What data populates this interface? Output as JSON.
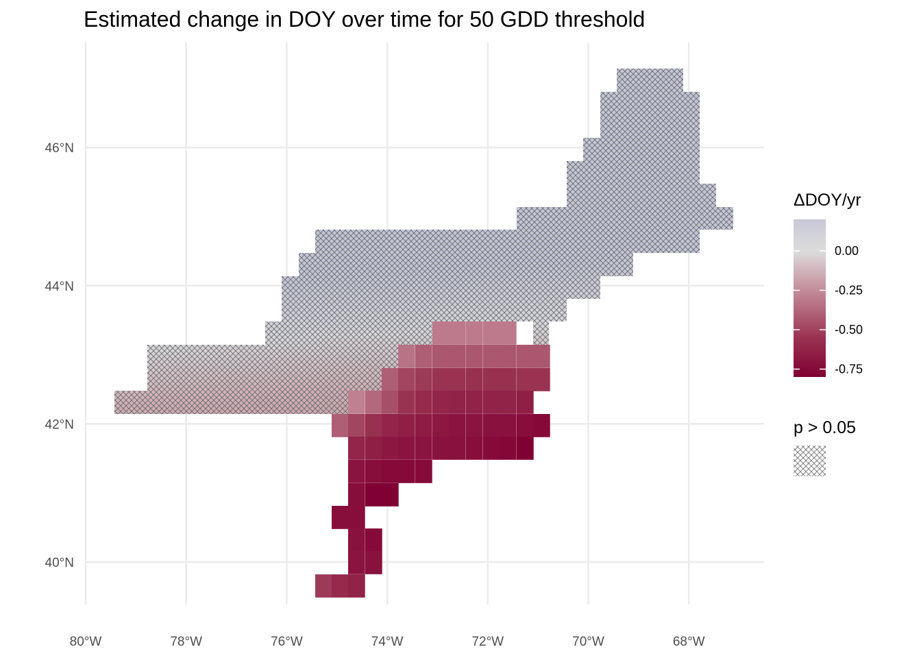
{
  "title": "Estimated change in DOY over time for 50 GDD threshold",
  "chart_data": {
    "type": "heatmap",
    "title": "Estimated change in DOY over time for 50 GDD threshold",
    "xlabel": "",
    "ylabel": "",
    "x_ticks": [
      "80°W",
      "78°W",
      "76°W",
      "74°W",
      "72°W",
      "70°W",
      "68°W"
    ],
    "y_ticks": [
      "40°N",
      "42°N",
      "44°N",
      "46°N"
    ],
    "grid": true,
    "legend_position": "right",
    "color_legend": {
      "title": "ΔDOY/yr",
      "ticks": [
        "0.00",
        "-0.25",
        "-0.50",
        "-0.75"
      ],
      "range": [
        -0.8,
        0.2
      ],
      "colors": {
        "high": "#c8c8d8",
        "mid": "#e0e0e0",
        "low": "#800033"
      }
    },
    "hatch_legend": {
      "title": "p > 0.05",
      "meaning": "not significant (p > 0.05)"
    },
    "significant_cells": [
      {
        "lon": -73.0,
        "lat": 43.3,
        "value": -0.3
      },
      {
        "lon": -72.0,
        "lat": 43.3,
        "value": -0.3
      },
      {
        "lon": -73.0,
        "lat": 43.0,
        "value": -0.38
      },
      {
        "lon": -72.0,
        "lat": 43.0,
        "value": -0.4
      },
      {
        "lon": -71.1,
        "lat": 43.0,
        "value": -0.4
      },
      {
        "lon": -73.0,
        "lat": 42.6,
        "value": -0.48
      },
      {
        "lon": -72.0,
        "lat": 42.6,
        "value": -0.52
      },
      {
        "lon": -71.1,
        "lat": 42.6,
        "value": -0.5
      },
      {
        "lon": -74.1,
        "lat": 42.3,
        "value": -0.32
      },
      {
        "lon": -73.0,
        "lat": 42.3,
        "value": -0.55
      },
      {
        "lon": -72.0,
        "lat": 42.3,
        "value": -0.6
      },
      {
        "lon": -74.4,
        "lat": 42.0,
        "value": -0.38
      },
      {
        "lon": -73.3,
        "lat": 42.0,
        "value": -0.62
      },
      {
        "lon": -72.0,
        "lat": 42.0,
        "value": -0.68
      },
      {
        "lon": -71.1,
        "lat": 42.0,
        "value": -0.75
      },
      {
        "lon": -74.2,
        "lat": 41.6,
        "value": -0.58
      },
      {
        "lon": -72.5,
        "lat": 41.6,
        "value": -0.7
      },
      {
        "lon": -74.0,
        "lat": 41.3,
        "value": -0.72
      },
      {
        "lon": -74.3,
        "lat": 41.0,
        "value": -0.8
      },
      {
        "lon": -74.6,
        "lat": 40.6,
        "value": -0.73
      },
      {
        "lon": -74.4,
        "lat": 40.3,
        "value": -0.7
      },
      {
        "lon": -74.4,
        "lat": 40.0,
        "value": -0.68
      },
      {
        "lon": -74.9,
        "lat": 39.6,
        "value": -0.55
      }
    ],
    "nonsignificant_cells": [
      {
        "lon": -68.5,
        "lat": 46.9,
        "value": 0.15
      },
      {
        "lon": -68.5,
        "lat": 46.2,
        "value": 0.12
      },
      {
        "lon": -68.8,
        "lat": 45.5,
        "value": 0.08
      },
      {
        "lon": -70.0,
        "lat": 45.0,
        "value": 0.05
      },
      {
        "lon": -75.0,
        "lat": 44.3,
        "value": 0.2
      },
      {
        "lon": -73.0,
        "lat": 44.3,
        "value": 0.1
      },
      {
        "lon": -75.5,
        "lat": 43.8,
        "value": 0.1
      },
      {
        "lon": -72.0,
        "lat": 44.0,
        "value": 0.0
      },
      {
        "lon": -76.0,
        "lat": 43.2,
        "value": -0.1
      },
      {
        "lon": -74.0,
        "lat": 43.2,
        "value": -0.02
      },
      {
        "lon": -77.5,
        "lat": 42.7,
        "value": -0.3
      },
      {
        "lon": -78.8,
        "lat": 42.5,
        "value": -0.35
      },
      {
        "lon": -76.0,
        "lat": 42.5,
        "value": -0.2
      }
    ]
  }
}
